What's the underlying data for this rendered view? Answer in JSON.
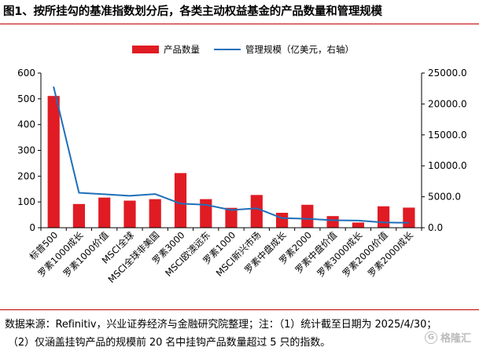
{
  "title": "图1、按所挂勾的基准指数划分后，各类主动权益基金的产品数量和管理规模",
  "footnote": {
    "line1": "数据来源：Refinitiv，兴业证券经济与金融研究院整理；注：（1）统计截至日期为 2025/4/30；",
    "line2": "（2）仅涵盖挂钩产品的规模前 20 名中挂钩产品数量超过 5 只的指数。"
  },
  "watermark": {
    "text": "格隆汇",
    "icon": "gelonghui-logo-icon"
  },
  "colors": {
    "bar": "#e01b23",
    "line": "#1f6fb9",
    "axis": "#000000",
    "rule": "#c00000"
  },
  "chart_data": {
    "type": "bar",
    "categories": [
      "标普500",
      "罗素1000成长",
      "罗素1000价值",
      "MSCI全球",
      "MSCI全球非美国",
      "罗素3000",
      "MSCI欧澳远东",
      "罗素1000",
      "MSCI新兴市场",
      "罗素中盘成长",
      "罗素2000",
      "罗素中盘价值",
      "罗素3000成长",
      "罗素2000价值",
      "罗素2000成长"
    ],
    "series": [
      {
        "name": "产品数量",
        "type": "bar",
        "axis": "left",
        "values": [
          511,
          92,
          117,
          105,
          111,
          212,
          111,
          77,
          127,
          58,
          89,
          45,
          20,
          83,
          78
        ]
      },
      {
        "name": "管理规模（亿美元，右轴）",
        "type": "line",
        "axis": "right",
        "values": [
          22800,
          5650,
          5400,
          5150,
          5450,
          3900,
          3700,
          2850,
          3150,
          1550,
          1450,
          1200,
          1150,
          850,
          800
        ]
      }
    ],
    "y_left": {
      "range": [
        0,
        600
      ],
      "ticks": [
        "0",
        "100",
        "200",
        "300",
        "400",
        "500",
        "600"
      ]
    },
    "y_right": {
      "range": [
        0,
        25000
      ],
      "ticks": [
        "0.0",
        "5000.0",
        "10000.0",
        "15000.0",
        "20000.0",
        "25000.0"
      ]
    },
    "legend_position": "top",
    "grid": false
  }
}
